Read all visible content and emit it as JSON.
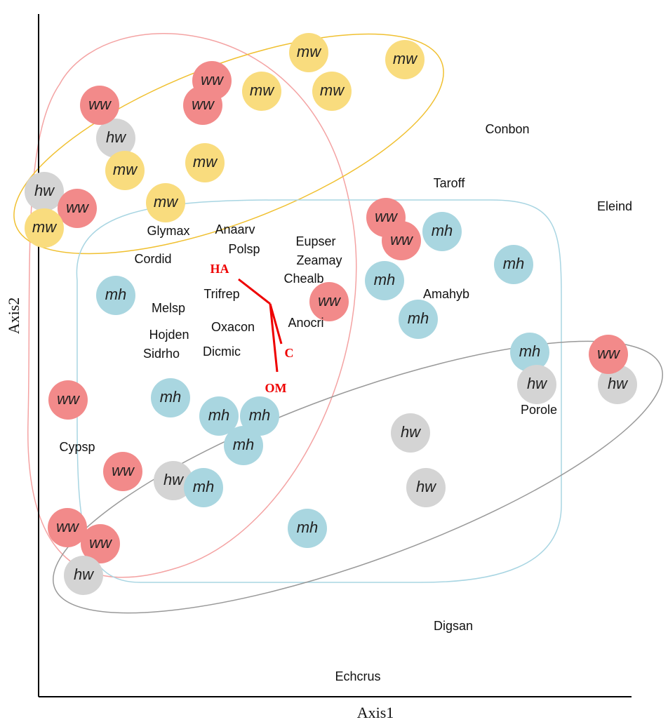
{
  "axes": {
    "x_label": "Axis1",
    "y_label": "Axis2"
  },
  "points": [
    "mw",
    "mw",
    "mw",
    "mw",
    "mw",
    "mw",
    "mw",
    "mw",
    "mh",
    "mh",
    "mh",
    "mh",
    "mh",
    "mh",
    "mh",
    "mh",
    "mh",
    "mh",
    "mh",
    "mh",
    "hw",
    "hw",
    "hw",
    "hw",
    "hw",
    "hw",
    "hw",
    "hw",
    "ww",
    "ww",
    "ww",
    "ww",
    "ww",
    "ww",
    "ww",
    "ww",
    "ww",
    "ww",
    "ww",
    "ww"
  ],
  "species": [
    "Conbon",
    "Taroff",
    "Eleind",
    "Glymax",
    "Anaarv",
    "Polsp",
    "Eupser",
    "Zeamay",
    "Cordid",
    "Chealb",
    "Trifrep",
    "Amahyb",
    "Melsp",
    "Oxacon",
    "Anocri",
    "Hojden",
    "Sidrho",
    "Dicmic",
    "Porole",
    "Cypsp",
    "Digsan",
    "Echcrus"
  ],
  "vectors": [
    "HA",
    "C",
    "OM"
  ]
}
